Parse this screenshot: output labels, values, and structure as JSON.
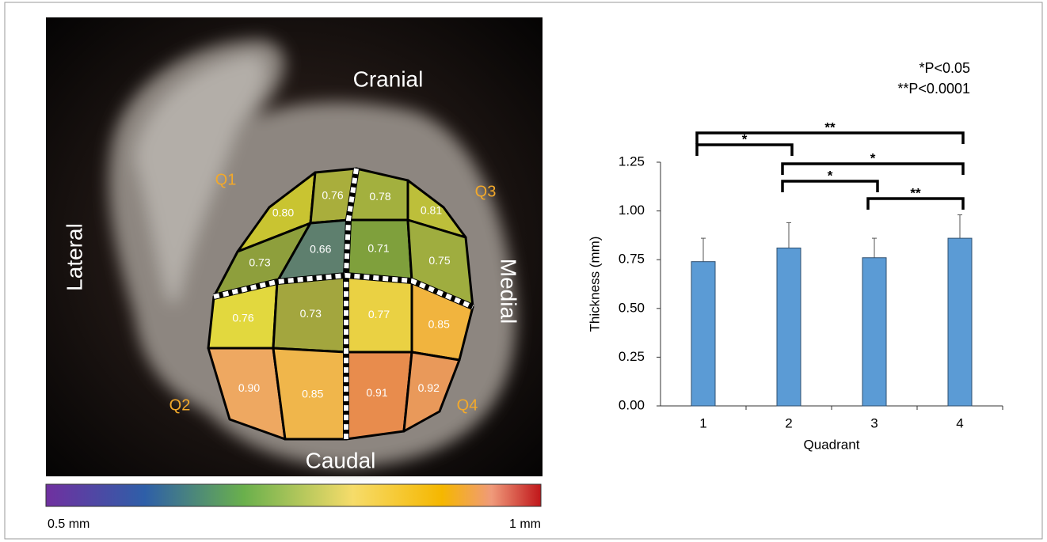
{
  "map": {
    "orientation": {
      "top": "Cranial",
      "bottom": "Caudal",
      "left": "Lateral",
      "right": "Medial"
    },
    "quadrants": [
      "Q1",
      "Q2",
      "Q3",
      "Q4"
    ],
    "cells": [
      [
        {
          "label": "0.80",
          "color": "#c9c431"
        },
        {
          "label": "0.76",
          "color": "#a9ae3c"
        },
        {
          "label": "0.78",
          "color": "#a3b03e"
        },
        {
          "label": "0.81",
          "color": "#bdbf3a"
        }
      ],
      [
        {
          "label": "0.73",
          "color": "#8e9f3c"
        },
        {
          "label": "0.66",
          "color": "#5e7f6e"
        },
        {
          "label": "0.71",
          "color": "#7fa03c"
        },
        {
          "label": "0.75",
          "color": "#9fad3f"
        }
      ],
      [
        {
          "label": "0.76",
          "color": "#e2d83e"
        },
        {
          "label": "0.73",
          "color": "#a3a63e"
        },
        {
          "label": "0.77",
          "color": "#ead143"
        },
        {
          "label": "0.85",
          "color": "#f1b43e"
        }
      ],
      [
        {
          "label": "0.90",
          "color": "#eea861"
        },
        {
          "label": "0.85",
          "color": "#f0b64b"
        },
        {
          "label": "0.91",
          "color": "#e88c4d"
        },
        {
          "label": "0.92",
          "color": "#e9995a"
        }
      ]
    ],
    "scale": {
      "min_label": "0.5 mm",
      "max_label": "1 mm"
    }
  },
  "chart_data": {
    "type": "bar",
    "x_label": "Quadrant",
    "y_label": "Thickness (mm)",
    "categories": [
      "1",
      "2",
      "3",
      "4"
    ],
    "values": [
      0.74,
      0.81,
      0.76,
      0.86
    ],
    "errors": [
      0.12,
      0.13,
      0.1,
      0.12
    ],
    "color": "#5b9bd5",
    "ylim": [
      0,
      1.25
    ],
    "yticks": [
      {
        "value": 0,
        "label": "0.00"
      },
      {
        "value": 0.25,
        "label": "0.25"
      },
      {
        "value": 0.5,
        "label": "0.50"
      },
      {
        "value": 0.75,
        "label": "0.75"
      },
      {
        "value": 1,
        "label": "1.00"
      },
      {
        "value": 1.25,
        "label": "1.25"
      }
    ],
    "annotations": [
      "**",
      "*",
      "*",
      "*",
      "**"
    ],
    "notes": [
      "*P<0.05",
      "**P<0.0001"
    ]
  }
}
